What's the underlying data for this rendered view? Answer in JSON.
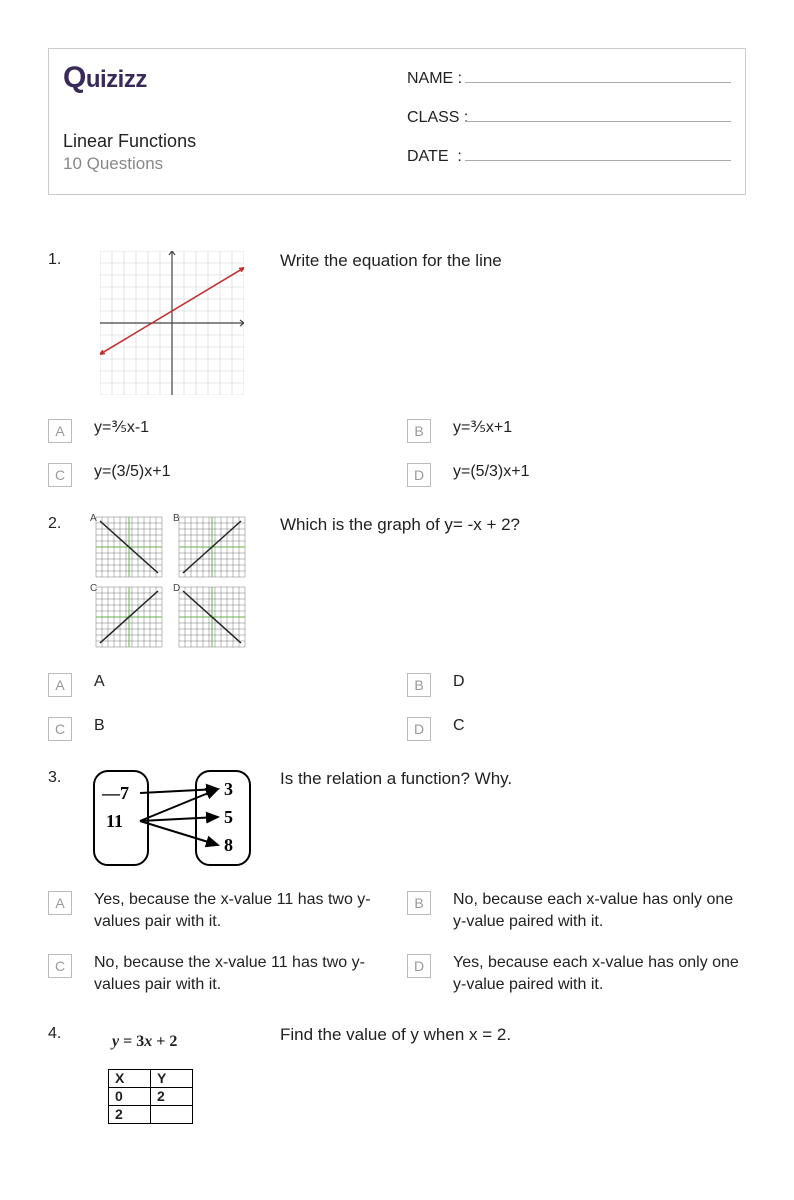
{
  "brand": "Quizizz",
  "title": "Linear Functions",
  "subtitle": "10 Questions",
  "fields": {
    "name": "NAME :",
    "class": "CLASS :",
    "date": "DATE  :"
  },
  "questions": [
    {
      "num": "1.",
      "prompt": "Write the equation for the line",
      "graph1": {
        "xlim": [
          -6,
          6
        ],
        "ylim": [
          -6,
          6
        ],
        "grid_step": 1,
        "line_points": [
          [
            -6,
            -2.6
          ],
          [
            6,
            4.6
          ]
        ],
        "line_color": "#c03030",
        "grid_color": "#d0d0d0",
        "axis_color": "#444444"
      },
      "choices": [
        {
          "letter": "A",
          "text": "y=⅗x-1"
        },
        {
          "letter": "B",
          "text": "y=⅗x+1"
        },
        {
          "letter": "C",
          "text": "y=(3/5)x+1"
        },
        {
          "letter": "D",
          "text": "y=(5/3)x+1"
        }
      ]
    },
    {
      "num": "2.",
      "prompt": "Which is the graph of y= -x + 2?",
      "four_graphs": {
        "labels": [
          "A",
          "B",
          "C",
          "D"
        ],
        "grid_color": "#555555",
        "highlight_color": "#6ab04c",
        "line_color": "#222222",
        "slopes": [
          -1,
          1,
          1,
          -1
        ]
      },
      "choices": [
        {
          "letter": "A",
          "text": "A"
        },
        {
          "letter": "B",
          "text": "D"
        },
        {
          "letter": "C",
          "text": "B"
        },
        {
          "letter": "D",
          "text": "C"
        }
      ]
    },
    {
      "num": "3.",
      "prompt": "Is the relation a function? Why.",
      "mapping": {
        "domain": [
          "—7",
          "11"
        ],
        "range": [
          "3",
          "5",
          "8"
        ],
        "arrows": [
          [
            0,
            0
          ],
          [
            1,
            0
          ],
          [
            1,
            1
          ],
          [
            1,
            2
          ]
        ]
      },
      "choices": [
        {
          "letter": "A",
          "text": "Yes, because the x-value 11 has two y-values pair with it."
        },
        {
          "letter": "B",
          "text": "No, because each x-value has only one y-value paired with it."
        },
        {
          "letter": "C",
          "text": "No, because the x-value 11 has two y-values pair with it."
        },
        {
          "letter": "D",
          "text": "Yes, because each x-value has only one y-value paired with it."
        }
      ]
    },
    {
      "num": "4.",
      "prompt": "Find the value of y when x = 2.",
      "equation": "y = 3x + 2",
      "table": {
        "headers": [
          "X",
          "Y"
        ],
        "rows": [
          [
            "0",
            "2"
          ],
          [
            "2",
            ""
          ]
        ]
      }
    }
  ]
}
